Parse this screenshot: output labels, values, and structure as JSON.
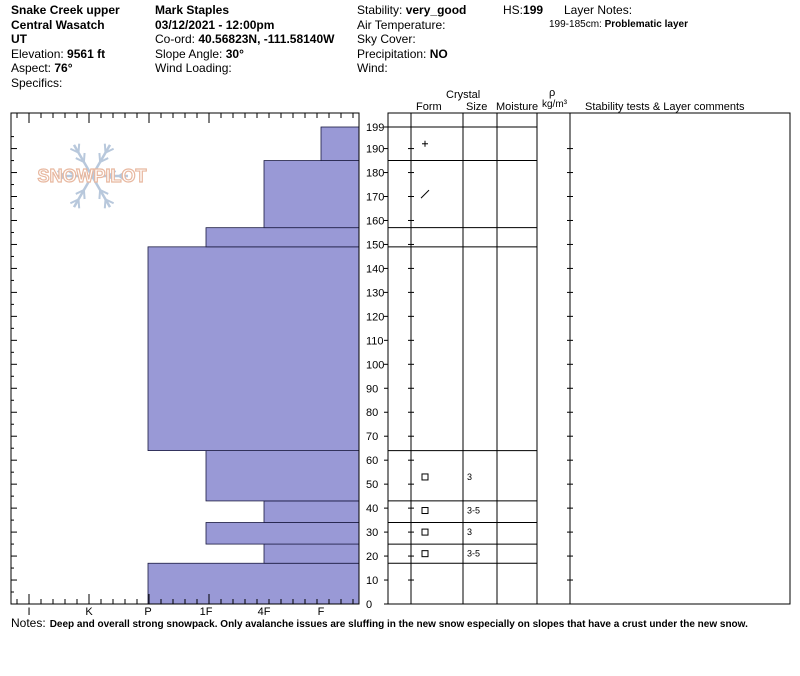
{
  "header": {
    "location": "Snake Creek upper",
    "range": "Central Wasatch",
    "state": "UT",
    "elevation_label": "Elevation:",
    "elevation": "9561 ft",
    "aspect_label": "Aspect:",
    "aspect": "76°",
    "specifics_label": "Specifics:",
    "observer": "Mark Staples",
    "datetime": "03/12/2021 - 12:00pm",
    "coord_label": "Co-ord:",
    "coord": "40.56823N, -111.58140W",
    "slope_label": "Slope Angle:",
    "slope": "30°",
    "wind_loading_label": "Wind Loading:",
    "stability_label": "Stability:",
    "stability": "very_good",
    "air_temp_label": "Air Temperature:",
    "sky_cover_label": "Sky Cover:",
    "precip_label": "Precipitation:",
    "precip": "NO",
    "wind_label": "Wind:",
    "hs_label": "HS:",
    "hs": "199",
    "layer_notes_label": "Layer Notes:",
    "layer_note_range": "199-185cm:",
    "layer_note_text": "Problematic layer"
  },
  "logo_text": "SNOWPILOT",
  "columns": {
    "crystal": "Crystal",
    "form": "Form",
    "size": "Size",
    "moisture": "Moisture",
    "rho": "ρ",
    "density_unit": "kg/m³",
    "comments": "Stability tests & Layer comments"
  },
  "notes_label": "Notes:",
  "notes_text": "Deep and overall strong snowpack. Only avalanche issues are sluffing in the new snow especially on slopes that have a crust under the new snow.",
  "colors": {
    "fill": "#9999d6",
    "stroke": "#1a1a40"
  },
  "chart_data": {
    "type": "bar",
    "orientation": "horizontal-step",
    "hardness_scale": [
      "I",
      "K",
      "P",
      "1F",
      "4F",
      "F"
    ],
    "y_ticks": [
      0,
      10,
      20,
      30,
      40,
      50,
      60,
      70,
      80,
      90,
      100,
      110,
      120,
      130,
      140,
      150,
      160,
      170,
      180,
      190,
      199
    ],
    "ylim": [
      0,
      199
    ],
    "layers": [
      {
        "bottom": 0,
        "top": 17,
        "hardness": "P"
      },
      {
        "bottom": 17,
        "top": 25,
        "hardness": "4F"
      },
      {
        "bottom": 25,
        "top": 34,
        "hardness": "1F"
      },
      {
        "bottom": 34,
        "top": 43,
        "hardness": "4F"
      },
      {
        "bottom": 43,
        "top": 64,
        "hardness": "1F"
      },
      {
        "bottom": 64,
        "top": 149,
        "hardness": "P"
      },
      {
        "bottom": 149,
        "top": 157,
        "hardness": "1F"
      },
      {
        "bottom": 157,
        "top": 185,
        "hardness": "4F"
      },
      {
        "bottom": 185,
        "top": 199,
        "hardness": "F"
      }
    ],
    "layer_boundaries": [
      17,
      25,
      34,
      43,
      64,
      149,
      157,
      185,
      199
    ],
    "crystals": [
      {
        "mid": 21,
        "form": "square",
        "size": "3-5"
      },
      {
        "mid": 30,
        "form": "square",
        "size": "3"
      },
      {
        "mid": 39,
        "form": "square",
        "size": "3-5"
      },
      {
        "mid": 53,
        "form": "square",
        "size": "3"
      },
      {
        "mid": 171,
        "form": "slash",
        "size": ""
      },
      {
        "mid": 192,
        "form": "plus",
        "size": ""
      }
    ]
  }
}
